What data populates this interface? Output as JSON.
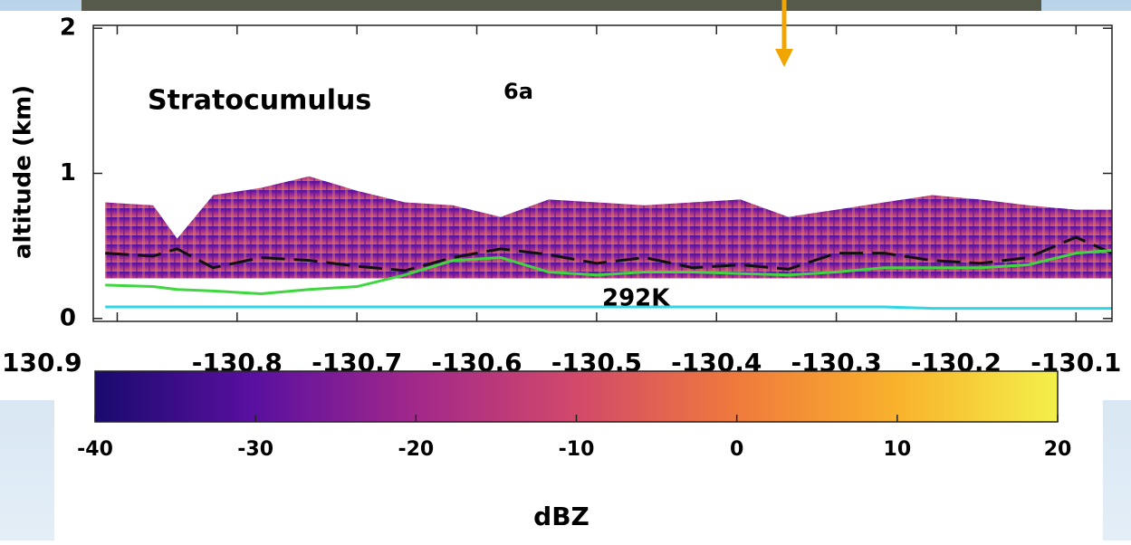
{
  "chart_data": {
    "type": "radar-section",
    "annotations": [
      "Stratocumulus",
      "6a",
      "292K"
    ],
    "ylabel": "altitude (km)",
    "xlim": [
      -130.92,
      -130.07
    ],
    "xticks": [
      {
        "value": -130.9,
        "label": "130.9"
      },
      -130.8,
      -130.7,
      -130.6,
      -130.5,
      -130.4,
      -130.3,
      -130.2,
      -130.1
    ],
    "ylim": [
      -0.02,
      2.02
    ],
    "yticks": [
      0,
      1,
      2
    ],
    "x": [
      -130.91,
      -130.87,
      -130.85,
      -130.82,
      -130.78,
      -130.74,
      -130.7,
      -130.66,
      -130.62,
      -130.58,
      -130.54,
      -130.5,
      -130.46,
      -130.42,
      -130.38,
      -130.34,
      -130.3,
      -130.26,
      -130.22,
      -130.18,
      -130.14,
      -130.1,
      -130.07
    ],
    "cloud_top": [
      0.8,
      0.78,
      0.55,
      0.85,
      0.9,
      0.98,
      0.88,
      0.8,
      0.78,
      0.7,
      0.82,
      0.8,
      0.78,
      0.8,
      0.82,
      0.7,
      0.75,
      0.8,
      0.85,
      0.82,
      0.78,
      0.75,
      0.75
    ],
    "cloud_base": 0.27,
    "series": [
      {
        "color": "#111111",
        "dash": true,
        "values": [
          0.45,
          0.43,
          0.48,
          0.35,
          0.42,
          0.4,
          0.36,
          0.33,
          0.42,
          0.48,
          0.44,
          0.38,
          0.42,
          0.35,
          0.37,
          0.34,
          0.45,
          0.45,
          0.4,
          0.38,
          0.42,
          0.56,
          0.45
        ]
      },
      {
        "color": "#3fd63f",
        "dash": false,
        "values": [
          0.23,
          0.22,
          0.2,
          0.19,
          0.17,
          0.2,
          0.22,
          0.3,
          0.4,
          0.42,
          0.32,
          0.3,
          0.32,
          0.32,
          0.31,
          0.3,
          0.32,
          0.35,
          0.35,
          0.35,
          0.37,
          0.45,
          0.47
        ]
      },
      {
        "color": "#2fd6e6",
        "dash": false,
        "values": [
          0.08,
          0.08,
          0.08,
          0.08,
          0.08,
          0.08,
          0.08,
          0.08,
          0.08,
          0.08,
          0.08,
          0.08,
          0.08,
          0.08,
          0.08,
          0.08,
          0.08,
          0.08,
          0.07,
          0.07,
          0.07,
          0.07,
          0.07
        ]
      }
    ],
    "colorbar": {
      "label": "dBZ",
      "lim": [
        -40,
        20
      ],
      "ticks": [
        -40,
        -30,
        -20,
        -10,
        0,
        10,
        20
      ],
      "colors": [
        "#1a0a6e",
        "#5a10a0",
        "#a2288a",
        "#d2496a",
        "#ef7a3c",
        "#f9b22c",
        "#f3f04a"
      ]
    }
  }
}
